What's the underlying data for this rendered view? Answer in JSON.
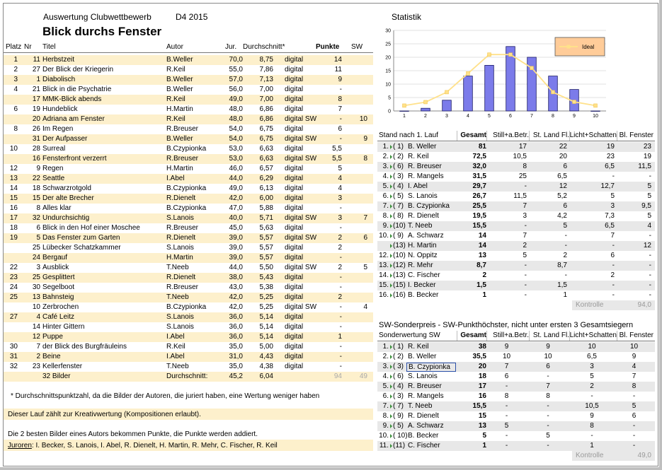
{
  "header": {
    "app_label": "Auswertung Clubwettbewerb",
    "series_label": "D4 2015",
    "title": "Blick durchs Fenster",
    "statistik_label": "Statistik"
  },
  "main_table": {
    "columns": [
      "Platz",
      "Nr",
      "Titel",
      "Autor",
      "Jur.",
      "Durchschnitt*",
      "",
      "Punkte",
      "SW"
    ],
    "rows": [
      [
        "1",
        "11",
        "Herbstzeit",
        "B.Weller",
        "70,0",
        "8,75",
        "digital",
        "14",
        ""
      ],
      [
        "2",
        "27",
        "Der Blick der Kriegerin",
        "R.Keil",
        "55,0",
        "7,86",
        "digital",
        "11",
        ""
      ],
      [
        "3",
        "1",
        "Diabolisch",
        "B.Weller",
        "57,0",
        "7,13",
        "digital",
        "9",
        ""
      ],
      [
        "4",
        "21",
        "Blick in die Psychatrie",
        "B.Weller",
        "56,0",
        "7,00",
        "digital",
        "-",
        ""
      ],
      [
        "",
        "17",
        "MMK-Blick abends",
        "R.Keil",
        "49,0",
        "7,00",
        "digital",
        "8",
        ""
      ],
      [
        "6",
        "19",
        "Hundeblick",
        "H.Martin",
        "48,0",
        "6,86",
        "digital",
        "7",
        ""
      ],
      [
        "",
        "20",
        "Adriana am Fenster",
        "R.Keil",
        "48,0",
        "6,86",
        "digital SW",
        "-",
        "10"
      ],
      [
        "8",
        "26",
        "Im Regen",
        "R.Breuser",
        "54,0",
        "6,75",
        "digital",
        "6",
        ""
      ],
      [
        "",
        "31",
        "Der Aufpasser",
        "B.Weller",
        "54,0",
        "6,75",
        "digital SW",
        "-",
        "9"
      ],
      [
        "10",
        "28",
        "Surreal",
        "B.Czypionka",
        "53,0",
        "6,63",
        "digital",
        "5,5",
        ""
      ],
      [
        "",
        "16",
        "Fensterfront verzerrt",
        "R.Breuser",
        "53,0",
        "6,63",
        "digital SW",
        "5,5",
        "8"
      ],
      [
        "12",
        "9",
        "Regen",
        "H.Martin",
        "46,0",
        "6,57",
        "digital",
        "5",
        ""
      ],
      [
        "13",
        "22",
        "Seattle",
        "I.Abel",
        "44,0",
        "6,29",
        "digital",
        "4",
        ""
      ],
      [
        "14",
        "18",
        "Schwarzrotgold",
        "B.Czypionka",
        "49,0",
        "6,13",
        "digital",
        "4",
        ""
      ],
      [
        "15",
        "15",
        "Der alte Brecher",
        "R.Dienelt",
        "42,0",
        "6,00",
        "digital",
        "3",
        ""
      ],
      [
        "16",
        "8",
        "Alles klar",
        "B.Czypionka",
        "47,0",
        "5,88",
        "digital",
        "-",
        ""
      ],
      [
        "17",
        "32",
        "Undurchsichtig",
        "S.Lanois",
        "40,0",
        "5,71",
        "digital SW",
        "3",
        "7"
      ],
      [
        "18",
        "6",
        "Blick in den Hof einer Moschee",
        "R.Breuser",
        "45,0",
        "5,63",
        "digital",
        "-",
        ""
      ],
      [
        "19",
        "5",
        "Das Fenster zum Garten",
        "R.Dienelt",
        "39,0",
        "5,57",
        "digital SW",
        "2",
        "6"
      ],
      [
        "",
        "25",
        "Lübecker Schatzkammer",
        "S.Lanois",
        "39,0",
        "5,57",
        "digital",
        "2",
        ""
      ],
      [
        "",
        "24",
        "Bergauf",
        "H.Martin",
        "39,0",
        "5,57",
        "digital",
        "-",
        ""
      ],
      [
        "22",
        "3",
        "Ausblick",
        "T.Neeb",
        "44,0",
        "5,50",
        "digital SW",
        "2",
        "5"
      ],
      [
        "23",
        "25",
        "Gesplittert",
        "R.Dienelt",
        "38,0",
        "5,43",
        "digital",
        "-",
        ""
      ],
      [
        "24",
        "30",
        "Segelboot",
        "R.Breuser",
        "43,0",
        "5,38",
        "digital",
        "-",
        ""
      ],
      [
        "25",
        "13",
        "Bahnsteig",
        "T.Neeb",
        "42,0",
        "5,25",
        "digital",
        "2",
        ""
      ],
      [
        "",
        "10",
        "Zerbrochen",
        "B.Czypionka",
        "42,0",
        "5,25",
        "digital SW",
        "-",
        "4"
      ],
      [
        "27",
        "4",
        "Café Leitz",
        "S.Lanois",
        "36,0",
        "5,14",
        "digital",
        "-",
        ""
      ],
      [
        "",
        "14",
        "Hinter Gittern",
        "S.Lanois",
        "36,0",
        "5,14",
        "digital",
        "-",
        ""
      ],
      [
        "",
        "12",
        "Puppe",
        "I.Abel",
        "36,0",
        "5,14",
        "digital",
        "1",
        ""
      ],
      [
        "30",
        "7",
        "der Blick des Burgfräuleins",
        "R.Keil",
        "35,0",
        "5,00",
        "digital",
        "-",
        ""
      ],
      [
        "31",
        "2",
        "Beine",
        "I.Abel",
        "31,0",
        "4,43",
        "digital",
        "-",
        ""
      ],
      [
        "32",
        "23",
        "Kellerfenster",
        "T.Neeb",
        "35,0",
        "4,38",
        "digital",
        "-",
        ""
      ]
    ],
    "footer": {
      "count": "32 Bilder",
      "label": "Durchschnitt:",
      "jur": "45,2",
      "avg": "6,04",
      "punkte": "94",
      "sw": "49"
    }
  },
  "notes": {
    "footnote": "* Durchschnittspunktzahl, da die Bilder der Autoren, die juriert haben, eine Wertung weniger haben",
    "kreativ": "Dieser Lauf zählt zur Kreativwertung (Kompositionen erlaubt).",
    "rule": "Die 2 besten Bilder eines Autors bekommen Punkte, die Punkte werden addiert.",
    "juroren_label": "Juroren",
    "juroren": ": I. Becker, S. Lanois, I. Abel,  R. Dienelt, H. Martin, R. Mehr, C. Fischer, R. Keil"
  },
  "chart_data": {
    "type": "bar",
    "categories": [
      "1",
      "2",
      "3",
      "4",
      "5",
      "6",
      "7",
      "8",
      "9",
      "10"
    ],
    "series": [
      {
        "name": "",
        "type": "bar",
        "values": [
          0,
          1,
          4,
          13,
          17,
          24,
          20,
          13,
          8,
          0
        ]
      },
      {
        "name": "Ideal",
        "type": "line",
        "values": [
          2,
          3.3,
          7,
          14,
          21,
          21,
          16,
          7,
          3.4,
          2
        ]
      }
    ],
    "ylim": [
      0,
      30
    ],
    "yticks": [
      "0",
      "5",
      "10",
      "15",
      "20",
      "25",
      "30"
    ],
    "legend": "top-right",
    "grid": true,
    "colors": {
      "bar": "#7b7bea",
      "bar_edge": "#1a1a66",
      "line": "#ffe18a",
      "legend_bg": "#ffcc99"
    }
  },
  "stand": {
    "columns": [
      "Stand nach 1. Lauf",
      "Gesamt",
      "Still+a.Betr.",
      "St. Land Fl.",
      "Licht+Schatten",
      "Bl. Fenster"
    ],
    "rows": [
      [
        "1.",
        "( 1)",
        "B. Weller",
        "81",
        "17",
        "22",
        "19",
        "23"
      ],
      [
        "2.",
        "( 2)",
        "R. Keil",
        "72,5",
        "10,5",
        "20",
        "23",
        "19"
      ],
      [
        "3.",
        "( 6)",
        "R. Breuser",
        "32,0",
        "8",
        "6",
        "6,5",
        "11,5"
      ],
      [
        "4.",
        "( 3)",
        "R. Mangels",
        "31,5",
        "25",
        "6,5",
        "-",
        "-"
      ],
      [
        "5.",
        "( 4)",
        "I. Abel",
        "29,7",
        "-",
        "12",
        "12,7",
        "5"
      ],
      [
        "6.",
        "( 5)",
        "S. Lanois",
        "26,7",
        "11,5",
        "5,2",
        "5",
        "5"
      ],
      [
        "7.",
        "( 7)",
        "B. Czypionka",
        "25,5",
        "7",
        "6",
        "3",
        "9,5"
      ],
      [
        "8.",
        "( 8)",
        "R. Dienelt",
        "19,5",
        "3",
        "4,2",
        "7,3",
        "5"
      ],
      [
        "9.",
        "(10)",
        "T. Neeb",
        "15,5",
        "-",
        "5",
        "6,5",
        "4"
      ],
      [
        "10.",
        "( 9)",
        "A. Schwarz",
        "14",
        "7",
        "-",
        "7",
        "-"
      ],
      [
        "",
        "(13)",
        "H. Martin",
        "14",
        "2",
        "-",
        "-",
        "12"
      ],
      [
        "12.",
        "(10)",
        "N. Oppitz",
        "13",
        "5",
        "2",
        "6",
        "-"
      ],
      [
        "13.",
        "(12)",
        "R. Mehr",
        "8,7",
        "-",
        "8,7",
        "-",
        "-"
      ],
      [
        "14.",
        "(13)",
        "C. Fischer",
        "2",
        "-",
        "-",
        "2",
        "-"
      ],
      [
        "15.",
        "(15)",
        "I. Becker",
        "1,5",
        "-",
        "1,5",
        "-",
        "-"
      ],
      [
        "16.",
        "(16)",
        "B. Becker",
        "1",
        "-",
        "1",
        "-",
        "-"
      ]
    ],
    "kontrolle_label": "Kontrolle",
    "kontrolle_value": "94,0"
  },
  "sw": {
    "title": "SW-Sonderpreis - SW-Punkthöchster, nicht unter ersten 3 Gesamtsiegern",
    "columns": [
      "Sonderwertung SW",
      "Gesamt",
      "Still+a.Betr.",
      "St. Land Fl.",
      "Licht+Schatten",
      "Bl. Fenster"
    ],
    "rows": [
      [
        "1.",
        "( 1)",
        "R. Keil",
        "38",
        "9",
        "9",
        "10",
        "10"
      ],
      [
        "2.",
        "( 2)",
        "B. Weller",
        "35,5",
        "10",
        "10",
        "6,5",
        "9"
      ],
      [
        "3.",
        "( 3)",
        "B. Czypionka",
        "20",
        "7",
        "6",
        "3",
        "4"
      ],
      [
        "4.",
        "( 6)",
        "S. Lanois",
        "18",
        "6",
        "-",
        "5",
        "7"
      ],
      [
        "5.",
        "( 4)",
        "R. Breuser",
        "17",
        "-",
        "7",
        "2",
        "8"
      ],
      [
        "6.",
        "( 3)",
        "R. Mangels",
        "16",
        "8",
        "8",
        "-",
        "-"
      ],
      [
        "7.",
        "( 7)",
        "T. Neeb",
        "15,5",
        "-",
        "-",
        "10,5",
        "5"
      ],
      [
        "8.",
        "( 9)",
        "R. Dienelt",
        "15",
        "-",
        "-",
        "9",
        "6"
      ],
      [
        "9.",
        "( 5)",
        "A. Schwarz",
        "13",
        "5",
        "-",
        "8",
        "-"
      ],
      [
        "10.",
        "( 10)",
        "B. Becker",
        "5",
        "-",
        "5",
        "-",
        "-"
      ],
      [
        "11.",
        "(11)",
        "C. Fischer",
        "1",
        "-",
        "-",
        "1",
        "-"
      ]
    ],
    "kontrolle_label": "Kontrolle",
    "kontrolle_value": "49,0"
  }
}
